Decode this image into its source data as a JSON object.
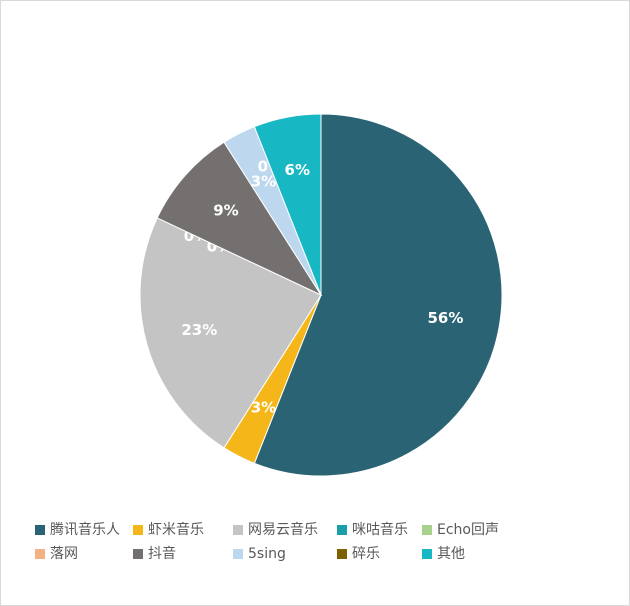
{
  "chart_data": {
    "type": "pie",
    "categories": [
      "腾讯音乐人",
      "虾米音乐",
      "网易云音乐",
      "咪咕音乐",
      "Echo回声",
      "落网",
      "抖音",
      "5sing",
      "碎乐",
      "其他"
    ],
    "values": [
      56,
      3,
      23,
      0,
      0,
      0,
      9,
      3,
      0,
      6
    ],
    "value_labels": [
      "56%",
      "3%",
      "23%",
      "0%",
      "0%",
      "0%",
      "9%",
      "3%",
      "0%",
      "6%"
    ],
    "colors": [
      "#2a6474",
      "#f5b619",
      "#c4c4c4",
      "#1a9fa8",
      "#a9d18e",
      "#f4b183",
      "#757070",
      "#bdd7ee",
      "#7f6000",
      "#17b8c4"
    ],
    "legend": "bottom"
  }
}
